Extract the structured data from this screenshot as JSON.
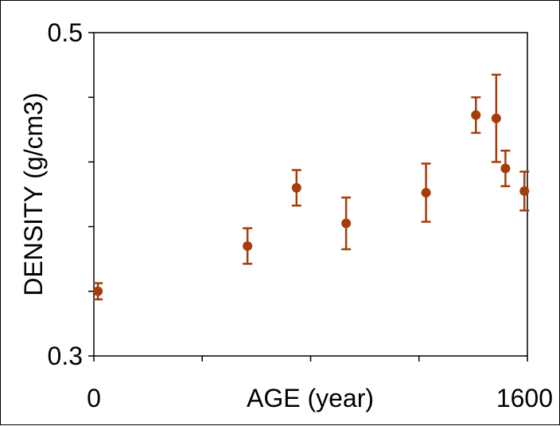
{
  "chart_data": {
    "type": "scatter",
    "xlabel": "AGE (year)",
    "ylabel": "DENSITY (g/cm3)",
    "xlim": [
      0,
      1600
    ],
    "ylim": [
      0.3,
      0.5
    ],
    "x_tick_values": [
      0,
      400,
      800,
      1200,
      1600
    ],
    "y_tick_values": [
      0.3,
      0.34,
      0.38,
      0.42,
      0.46,
      0.5
    ],
    "x_tick_labels": [
      {
        "value": 0,
        "label": "0"
      },
      {
        "value": 1600,
        "label": "1600"
      }
    ],
    "y_tick_labels": [
      {
        "value": 0.5,
        "label": "0.5"
      },
      {
        "value": 0.3,
        "label": "0.3"
      }
    ],
    "grid": false,
    "legend": "none",
    "marker_color": "#a53d0a",
    "series": [
      {
        "points": [
          {
            "x": 15,
            "y": 0.34,
            "err": 0.005
          },
          {
            "x": 567,
            "y": 0.368,
            "err": 0.011
          },
          {
            "x": 748,
            "y": 0.404,
            "err": 0.011
          },
          {
            "x": 931,
            "y": 0.382,
            "err": 0.016
          },
          {
            "x": 1226,
            "y": 0.401,
            "err": 0.018
          },
          {
            "x": 1410,
            "y": 0.449,
            "err": 0.011
          },
          {
            "x": 1485,
            "y": 0.447,
            "err": 0.027
          },
          {
            "x": 1519,
            "y": 0.416,
            "err": 0.011
          },
          {
            "x": 1589,
            "y": 0.402,
            "err": 0.012
          }
        ]
      }
    ]
  }
}
